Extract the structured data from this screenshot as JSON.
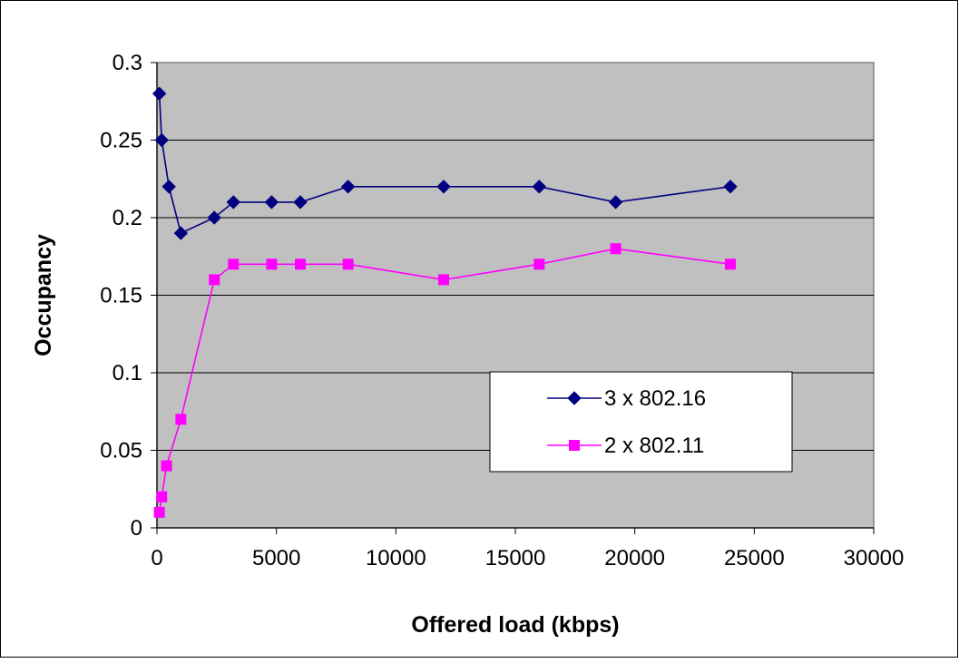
{
  "chart_data": {
    "type": "line",
    "title": "",
    "xlabel": "Offered load (kbps)",
    "ylabel": "Occupancy",
    "xlim": [
      0,
      30000
    ],
    "ylim": [
      0,
      0.3
    ],
    "x_ticks": [
      "0",
      "5000",
      "10000",
      "15000",
      "20000",
      "25000",
      "30000"
    ],
    "y_ticks": [
      "0",
      "0.05",
      "0.1",
      "0.15",
      "0.2",
      "0.25",
      "0.3"
    ],
    "grid": "horizontal",
    "plot_background": "#C0C0C0",
    "legend_position": "right, lower-middle of plot",
    "series": [
      {
        "name": "3 x 802.16",
        "color": "#000080",
        "marker": "diamond",
        "points": [
          [
            100,
            0.28
          ],
          [
            200,
            0.25
          ],
          [
            500,
            0.22
          ],
          [
            1000,
            0.19
          ],
          [
            2400,
            0.2
          ],
          [
            3200,
            0.21
          ],
          [
            4800,
            0.21
          ],
          [
            6000,
            0.21
          ],
          [
            8000,
            0.22
          ],
          [
            12000,
            0.22
          ],
          [
            16000,
            0.22
          ],
          [
            19200,
            0.21
          ],
          [
            24000,
            0.22
          ]
        ]
      },
      {
        "name": "2 x 802.11",
        "color": "#FF00FF",
        "marker": "square",
        "points": [
          [
            100,
            0.01
          ],
          [
            200,
            0.02
          ],
          [
            400,
            0.04
          ],
          [
            1000,
            0.07
          ],
          [
            2400,
            0.16
          ],
          [
            3200,
            0.17
          ],
          [
            4800,
            0.17
          ],
          [
            6000,
            0.17
          ],
          [
            8000,
            0.17
          ],
          [
            12000,
            0.16
          ],
          [
            16000,
            0.17
          ],
          [
            19200,
            0.18
          ],
          [
            24000,
            0.17
          ]
        ]
      }
    ]
  }
}
